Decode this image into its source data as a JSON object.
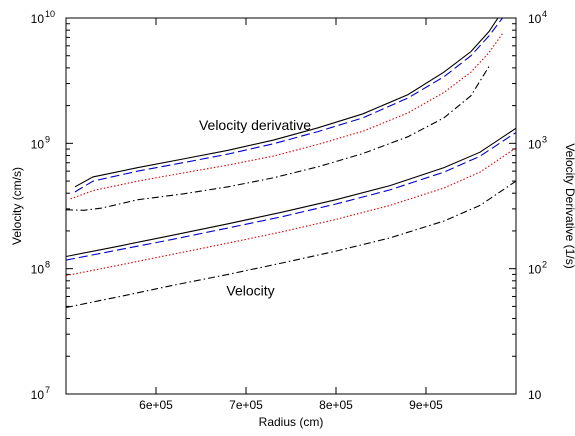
{
  "chart_data": {
    "type": "line",
    "xlabel": "Radius (cm)",
    "ylabel_left": "Velocity (cm/s)",
    "ylabel_right": "Velocity Derivative (1/s)",
    "x_scale": "linear",
    "y_scale": "log",
    "xlim": [
      500000,
      1000000
    ],
    "ylim_left": [
      10000000,
      10000000000
    ],
    "ylim_right": [
      10,
      10000
    ],
    "x_ticks": [
      {
        "value": 600000,
        "label": "6e+05"
      },
      {
        "value": 700000,
        "label": "7e+05"
      },
      {
        "value": 800000,
        "label": "8e+05"
      },
      {
        "value": 900000,
        "label": "9e+05"
      }
    ],
    "y_ticks_left": [
      {
        "value": 10000000,
        "base": "10",
        "exp": "7"
      },
      {
        "value": 100000000,
        "base": "10",
        "exp": "8"
      },
      {
        "value": 1000000000,
        "base": "10",
        "exp": "9"
      },
      {
        "value": 10000000000,
        "base": "10",
        "exp": "10"
      }
    ],
    "y_ticks_right": [
      {
        "value": 10,
        "base": "10",
        "exp": ""
      },
      {
        "value": 100,
        "base": "10",
        "exp": "2"
      },
      {
        "value": 1000,
        "base": "10",
        "exp": "3"
      },
      {
        "value": 10000,
        "base": "10",
        "exp": "4"
      }
    ],
    "annotations": [
      {
        "text": "Velocity derivative",
        "x": 710000,
        "y": 1400000000
      },
      {
        "text": "Velocity",
        "x": 705000,
        "y": 67000000
      }
    ],
    "grid": false,
    "legend": "none",
    "series": [
      {
        "group": "velocity",
        "style": "solid",
        "color": "#000000",
        "x": [
          500000,
          560000,
          620000,
          680000,
          740000,
          800000,
          860000,
          920000,
          960000,
          1000000
        ],
        "y": [
          125000000,
          152000000,
          186000000,
          228000000,
          282000000,
          355000000,
          460000000,
          640000000,
          850000000,
          1320000000
        ]
      },
      {
        "group": "velocity",
        "style": "dashed",
        "color": "#0000cc",
        "x": [
          500000,
          560000,
          620000,
          680000,
          740000,
          800000,
          860000,
          920000,
          960000,
          1000000
        ],
        "y": [
          117000000,
          142000000,
          172000000,
          211000000,
          260000000,
          328000000,
          425000000,
          590000000,
          790000000,
          1220000000
        ]
      },
      {
        "group": "velocity",
        "style": "dotted",
        "color": "#dd0000",
        "x": [
          500000,
          560000,
          620000,
          680000,
          740000,
          800000,
          860000,
          920000,
          960000,
          1000000
        ],
        "y": [
          88000000,
          107000000,
          131000000,
          160000000,
          197000000,
          247000000,
          320000000,
          440000000,
          590000000,
          920000000
        ]
      },
      {
        "group": "velocity",
        "style": "dashdot",
        "color": "#000000",
        "x": [
          500000,
          560000,
          620000,
          680000,
          740000,
          800000,
          860000,
          920000,
          960000,
          1000000
        ],
        "y": [
          49000000,
          60000000,
          74000000,
          90000000,
          111000000,
          138000000,
          176000000,
          240000000,
          320000000,
          500000000
        ]
      },
      {
        "group": "velocity derivative",
        "style": "solid",
        "color": "#000000",
        "x": [
          510000,
          530000,
          580000,
          630000,
          680000,
          730000,
          780000,
          830000,
          880000,
          920000,
          950000,
          970000,
          980000
        ],
        "y": [
          450,
          540,
          640,
          750,
          880,
          1060,
          1330,
          1720,
          2450,
          3700,
          5400,
          7800,
          10000
        ]
      },
      {
        "group": "velocity derivative",
        "style": "dashed",
        "color": "#0000cc",
        "x": [
          510000,
          530000,
          580000,
          630000,
          680000,
          730000,
          780000,
          830000,
          880000,
          920000,
          950000,
          970000,
          985000
        ],
        "y": [
          410,
          500,
          600,
          700,
          820,
          990,
          1240,
          1600,
          2300,
          3400,
          5000,
          7200,
          10000
        ]
      },
      {
        "group": "velocity derivative",
        "style": "dotted",
        "color": "#dd0000",
        "x": [
          505000,
          530000,
          580000,
          630000,
          680000,
          730000,
          780000,
          830000,
          880000,
          920000,
          950000,
          970000,
          985000
        ],
        "y": [
          360,
          420,
          500,
          580,
          670,
          790,
          980,
          1250,
          1750,
          2550,
          3700,
          5300,
          7500
        ]
      },
      {
        "group": "velocity derivative",
        "style": "dashdot",
        "color": "#000000",
        "x": [
          500000,
          520000,
          540000,
          580000,
          630000,
          680000,
          730000,
          780000,
          830000,
          880000,
          920000,
          950000,
          970000
        ],
        "y": [
          295,
          292,
          305,
          355,
          395,
          450,
          530,
          650,
          830,
          1130,
          1600,
          2400,
          4100
        ]
      }
    ]
  }
}
